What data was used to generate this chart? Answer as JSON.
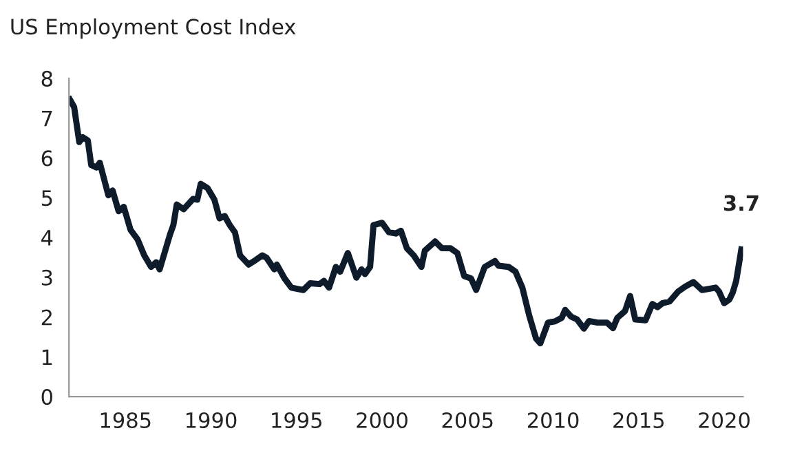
{
  "chart_data": {
    "type": "line",
    "title": "US Employment Cost Index",
    "x": [
      1981.75,
      1982.0,
      1982.3,
      1982.5,
      1982.8,
      1983.0,
      1983.3,
      1983.5,
      1984.0,
      1984.25,
      1984.6,
      1984.9,
      1985.3,
      1985.7,
      1986.1,
      1986.5,
      1986.8,
      1987.0,
      1987.6,
      1987.8,
      1988.0,
      1988.4,
      1988.95,
      1989.2,
      1989.4,
      1989.8,
      1990.2,
      1990.5,
      1990.8,
      1991.1,
      1991.4,
      1991.7,
      1992.2,
      1992.6,
      1993.0,
      1993.25,
      1993.7,
      1993.85,
      1994.3,
      1994.7,
      1995.4,
      1995.8,
      1996.35,
      1996.6,
      1996.9,
      1997.3,
      1997.55,
      1998.0,
      1998.5,
      1998.8,
      1999.0,
      1999.3,
      1999.5,
      2000.0,
      2000.4,
      2000.8,
      2001.1,
      2001.45,
      2001.85,
      2002.3,
      2002.5,
      2003.1,
      2003.5,
      2004.0,
      2004.4,
      2004.8,
      2005.2,
      2005.5,
      2006.0,
      2006.6,
      2006.8,
      2007.4,
      2007.8,
      2008.2,
      2008.6,
      2009.0,
      2009.25,
      2009.7,
      2010.1,
      2010.5,
      2010.7,
      2011.05,
      2011.4,
      2011.8,
      2012.1,
      2012.6,
      2013.15,
      2013.5,
      2013.75,
      2014.2,
      2014.5,
      2014.8,
      2015.4,
      2015.8,
      2016.1,
      2016.4,
      2016.8,
      2017.3,
      2017.7,
      2018.2,
      2018.7,
      2019.1,
      2019.5,
      2019.7,
      2020.0,
      2020.3,
      2020.5,
      2020.7,
      2021.0
    ],
    "series": [
      {
        "color": "#0d1b2a",
        "values": [
          7.47,
          7.28,
          6.4,
          6.52,
          6.44,
          5.82,
          5.76,
          5.88,
          5.06,
          5.18,
          4.66,
          4.77,
          4.19,
          3.96,
          3.55,
          3.26,
          3.38,
          3.2,
          4.07,
          4.31,
          4.83,
          4.71,
          4.97,
          4.95,
          5.35,
          5.24,
          4.95,
          4.48,
          4.54,
          4.31,
          4.13,
          3.55,
          3.32,
          3.43,
          3.55,
          3.49,
          3.2,
          3.32,
          2.97,
          2.74,
          2.68,
          2.85,
          2.83,
          2.91,
          2.74,
          3.26,
          3.14,
          3.61,
          2.99,
          3.2,
          3.08,
          3.26,
          4.31,
          4.37,
          4.13,
          4.1,
          4.17,
          3.73,
          3.55,
          3.26,
          3.67,
          3.9,
          3.73,
          3.73,
          3.61,
          3.03,
          2.97,
          2.68,
          3.26,
          3.41,
          3.29,
          3.26,
          3.14,
          2.74,
          2.04,
          1.46,
          1.34,
          1.86,
          1.89,
          1.98,
          2.18,
          2.01,
          1.94,
          1.71,
          1.9,
          1.86,
          1.86,
          1.72,
          1.98,
          2.15,
          2.53,
          1.94,
          1.92,
          2.33,
          2.25,
          2.35,
          2.39,
          2.64,
          2.76,
          2.88,
          2.68,
          2.71,
          2.74,
          2.64,
          2.35,
          2.44,
          2.62,
          2.91,
          3.7
        ]
      }
    ],
    "annotations": [
      {
        "text": "3.7",
        "x": 2021.0,
        "y": 3.7
      }
    ],
    "xlim": [
      1981.7,
      2021.1
    ],
    "xticks": [
      1985,
      1990,
      1995,
      2000,
      2005,
      2010,
      2015,
      2020
    ],
    "ylim": [
      0,
      8
    ],
    "yticks": [
      0,
      1,
      2,
      3,
      4,
      5,
      6,
      7,
      8
    ],
    "grid": false,
    "legend": false,
    "marker": "none",
    "line_style": "solid"
  }
}
